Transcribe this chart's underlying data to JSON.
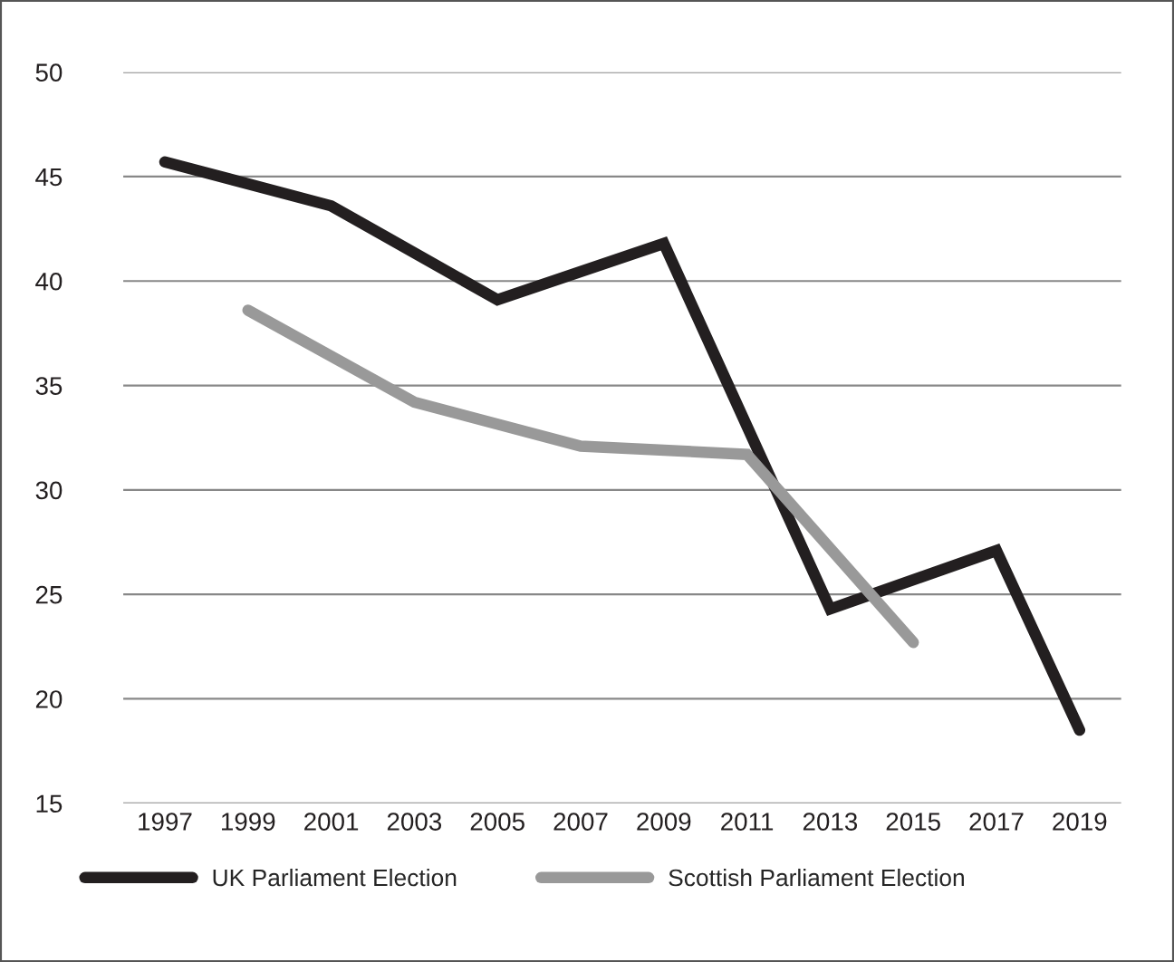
{
  "chart_data": {
    "type": "line",
    "xlim": [
      1996,
      2020
    ],
    "xticks": [
      1997,
      1999,
      2001,
      2003,
      2005,
      2007,
      2009,
      2011,
      2013,
      2015,
      2017,
      2019
    ],
    "ylim": [
      15,
      50
    ],
    "yticks": [
      15,
      20,
      25,
      30,
      35,
      40,
      45,
      50
    ],
    "grid": "y",
    "legend": "bottom",
    "line_style": "solid",
    "marker": "none",
    "series": [
      {
        "name": "UK Parliament Election",
        "color": "#231f20",
        "x": [
          1997,
          2001,
          2005,
          2009,
          2013,
          2017,
          2019
        ],
        "values": [
          45.7,
          43.6,
          39.1,
          41.8,
          24.3,
          27.1,
          18.5
        ]
      },
      {
        "name": "Scottish Parliament Election",
        "color": "#999999",
        "x": [
          1999,
          2003,
          2007,
          2011,
          2015
        ],
        "values": [
          38.6,
          34.2,
          32.1,
          31.7,
          22.7
        ]
      }
    ]
  }
}
